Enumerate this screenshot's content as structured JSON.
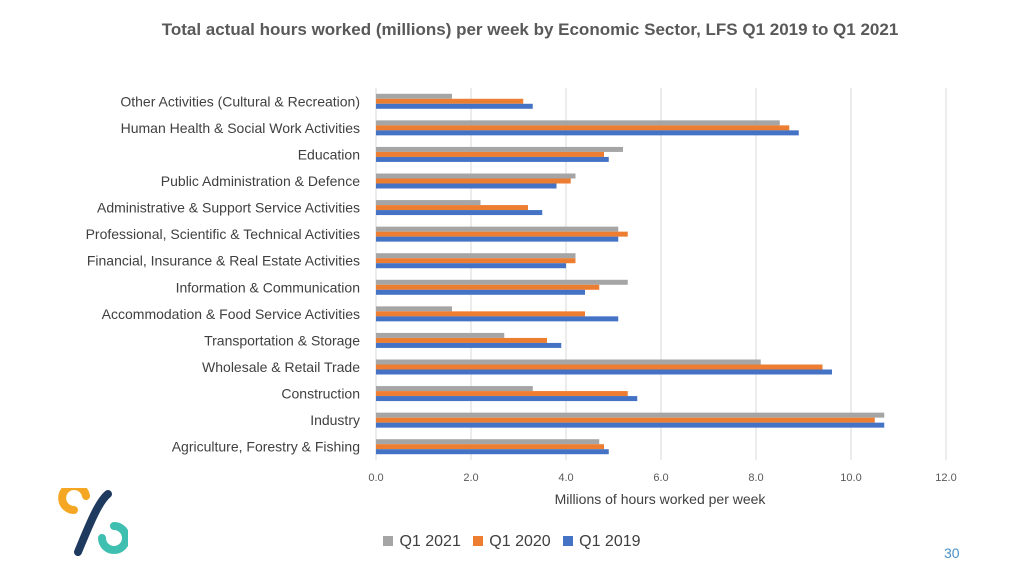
{
  "page_number": "30",
  "chart_data": {
    "type": "bar",
    "orientation": "horizontal",
    "title": "Total actual hours worked (millions) per week by Economic Sector, LFS Q1 2019 to Q1 2021",
    "xlabel": "Millions of hours worked per week",
    "ylabel": "",
    "xlim": [
      0,
      12
    ],
    "xticks": [
      "0.0",
      "2.0",
      "4.0",
      "6.0",
      "8.0",
      "10.0",
      "12.0"
    ],
    "grid": "vertical",
    "legend_position": "bottom",
    "categories": [
      "Other Activities (Cultural & Recreation)",
      "Human Health & Social Work Activities",
      "Education",
      "Public Administration & Defence",
      "Administrative & Support Service Activities",
      "Professional, Scientific & Technical Activities",
      "Financial, Insurance & Real Estate Activities",
      "Information & Communication",
      "Accommodation & Food Service Activities",
      "Transportation & Storage",
      "Wholesale & Retail Trade",
      "Construction",
      "Industry",
      "Agriculture, Forestry & Fishing"
    ],
    "series": [
      {
        "name": "Q1 2021",
        "color": "#a5a5a5",
        "values": [
          1.6,
          8.5,
          5.2,
          4.2,
          2.2,
          5.1,
          4.2,
          5.3,
          1.6,
          2.7,
          8.1,
          3.3,
          10.7,
          4.7
        ]
      },
      {
        "name": "Q1 2020",
        "color": "#ed7d31",
        "values": [
          3.1,
          8.7,
          4.8,
          4.1,
          3.2,
          5.3,
          4.2,
          4.7,
          4.4,
          3.6,
          9.4,
          5.3,
          10.5,
          4.8
        ]
      },
      {
        "name": "Q1 2019",
        "color": "#4472c4",
        "values": [
          3.3,
          8.9,
          4.9,
          3.8,
          3.5,
          5.1,
          4.0,
          4.4,
          5.1,
          3.9,
          9.6,
          5.5,
          10.7,
          4.9
        ]
      }
    ]
  }
}
